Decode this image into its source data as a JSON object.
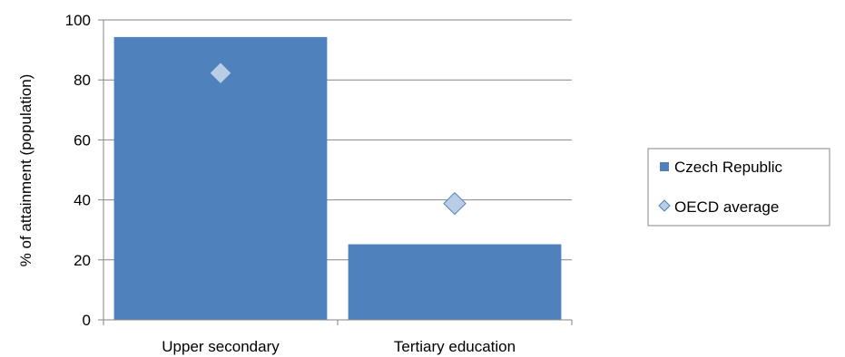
{
  "chart_data": {
    "type": "bar",
    "categories": [
      "Upper secondary",
      "Tertiary education"
    ],
    "series": [
      {
        "name": "Czech Republic",
        "kind": "bar",
        "values": [
          94.3,
          25.2
        ]
      },
      {
        "name": "OECD average",
        "kind": "marker",
        "marker": "diamond",
        "values": [
          82.3,
          38.8
        ]
      }
    ],
    "xlabel": "",
    "ylabel": "% of attainment  (population)",
    "ylim": [
      0,
      100
    ],
    "yticks": [
      0,
      20,
      40,
      60,
      80,
      100
    ],
    "grid": true,
    "legend_position": "right",
    "colors": {
      "bar_fill": "#4F81BD",
      "marker_fill": "#B9CDE5",
      "marker_stroke": "#4F81BD",
      "grid": "#868686",
      "axis": "#868686"
    }
  }
}
